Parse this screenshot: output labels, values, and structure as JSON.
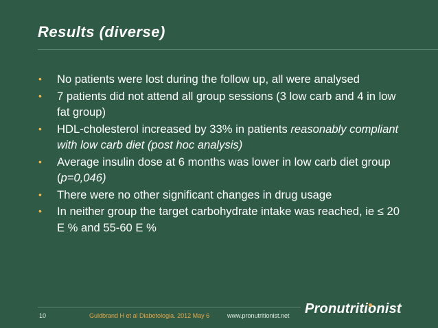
{
  "slide": {
    "title": "Results (diverse)",
    "bullets": [
      {
        "text": "No patients were lost during the follow up, all were analysed"
      },
      {
        "text": "7 patients did not attend all group sessions (3 low carb and 4 in low fat group)"
      },
      {
        "lead": "HDL-cholesterol increased by 33% in patients ",
        "italic": "reasonably compliant with low carb diet (post hoc analysis)"
      },
      {
        "lead": "Average insulin dose at 6 months was lower in low carb diet group (",
        "italic_mid": "p=0,046)",
        "tail": ""
      },
      {
        "text": "There were no other significant changes in drug usage"
      },
      {
        "text": "In neither group the target carbohydrate intake was reached, ie ≤ 20 E % and 55-60 E %"
      }
    ],
    "bullet_symbol": "•"
  },
  "footer": {
    "slide_number": "10",
    "citation": "Guldbrand H et al Diabetologia. 2012 May 6",
    "website": "www.pronutritionist.net",
    "logo_text_a": "Pronutriti",
    "logo_text_b": "o",
    "logo_text_c": "nist"
  },
  "colors": {
    "background": "#2f5b46",
    "bullet": "#f2b24a",
    "citation": "#e8a84a"
  }
}
